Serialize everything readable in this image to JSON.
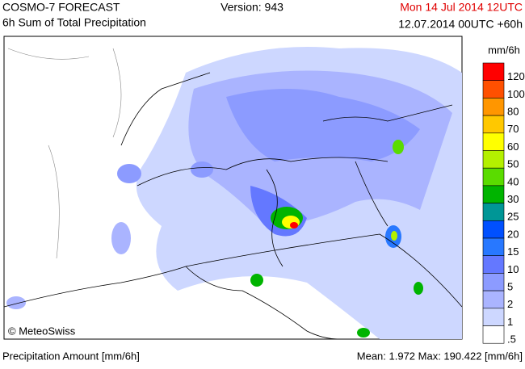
{
  "header": {
    "product": "COSMO-7 FORECAST",
    "field": "6h Sum of Total Precipitation",
    "version": "Version: 943",
    "valid_time": "Mon 14 Jul 2014 12UTC",
    "run": "12.07.2014 00UTC +60h"
  },
  "map": {
    "credit": "© MeteoSwiss"
  },
  "legend": {
    "unit": "mm/6h",
    "items": [
      {
        "label": "120",
        "color": "#ff0000"
      },
      {
        "label": "100",
        "color": "#ff5000"
      },
      {
        "label": "80",
        "color": "#ff9600"
      },
      {
        "label": "70",
        "color": "#ffc800"
      },
      {
        "label": "60",
        "color": "#ffff00"
      },
      {
        "label": "50",
        "color": "#b4f000"
      },
      {
        "label": "40",
        "color": "#5adc00"
      },
      {
        "label": "30",
        "color": "#00b400"
      },
      {
        "label": "25",
        "color": "#009696"
      },
      {
        "label": "20",
        "color": "#0050ff"
      },
      {
        "label": "15",
        "color": "#2878ff"
      },
      {
        "label": "10",
        "color": "#6478ff"
      },
      {
        "label": "5",
        "color": "#8c9bff"
      },
      {
        "label": "2",
        "color": "#aab4ff"
      },
      {
        "label": "1",
        "color": "#cdd7ff"
      },
      {
        "label": ".5",
        "color": "#ffffff"
      }
    ]
  },
  "footer": {
    "quantity": "Precipitation Amount [mm/6h]",
    "stats": "Mean:  1.972 Max: 190.422 [mm/6h]"
  }
}
